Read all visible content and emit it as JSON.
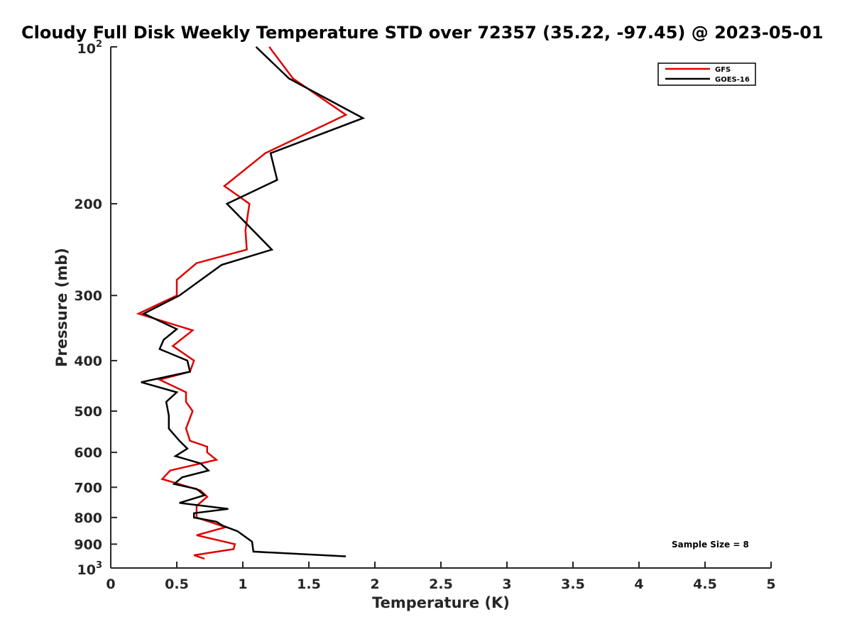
{
  "chart_data": {
    "type": "line",
    "title": "Cloudy Full Disk Weekly Temperature STD over 72357 (35.22, -97.45) @ 2023-05-01",
    "xlabel": "Temperature (K)",
    "ylabel": "Pressure (mb)",
    "xlim": [
      0,
      5
    ],
    "ylim": [
      100,
      1000
    ],
    "y_scale": "log",
    "y_reversed": true,
    "grid": false,
    "legend_position": "top-right",
    "x_ticks": [
      "0",
      "0.5",
      "1",
      "1.5",
      "2",
      "2.5",
      "3",
      "3.5",
      "4",
      "4.5",
      "5"
    ],
    "y_ticks": [
      {
        "value": 100,
        "base": "10",
        "exp": "2"
      },
      {
        "value": 200,
        "label": "200"
      },
      {
        "value": 300,
        "label": "300"
      },
      {
        "value": 400,
        "label": "400"
      },
      {
        "value": 500,
        "label": "500"
      },
      {
        "value": 600,
        "label": "600"
      },
      {
        "value": 700,
        "label": "700"
      },
      {
        "value": 800,
        "label": "800"
      },
      {
        "value": 900,
        "label": "900"
      },
      {
        "value": 1000,
        "base": "10",
        "exp": "3"
      }
    ],
    "annotation": "Sample Size = 8",
    "series": [
      {
        "name": "GFS",
        "color": "#e00000",
        "points": [
          [
            1.2,
            100
          ],
          [
            1.38,
            115
          ],
          [
            1.78,
            135
          ],
          [
            1.17,
            160
          ],
          [
            0.86,
            185
          ],
          [
            1.05,
            200
          ],
          [
            1.02,
            225
          ],
          [
            1.03,
            245
          ],
          [
            0.65,
            260
          ],
          [
            0.5,
            280
          ],
          [
            0.5,
            300
          ],
          [
            0.21,
            325
          ],
          [
            0.62,
            350
          ],
          [
            0.47,
            375
          ],
          [
            0.63,
            400
          ],
          [
            0.6,
            420
          ],
          [
            0.37,
            435
          ],
          [
            0.57,
            460
          ],
          [
            0.57,
            480
          ],
          [
            0.62,
            500
          ],
          [
            0.57,
            540
          ],
          [
            0.6,
            570
          ],
          [
            0.73,
            585
          ],
          [
            0.73,
            600
          ],
          [
            0.8,
            620
          ],
          [
            0.45,
            650
          ],
          [
            0.39,
            675
          ],
          [
            0.68,
            710
          ],
          [
            0.73,
            730
          ],
          [
            0.65,
            760
          ],
          [
            0.65,
            800
          ],
          [
            0.87,
            835
          ],
          [
            0.65,
            865
          ],
          [
            0.94,
            900
          ],
          [
            0.93,
            920
          ],
          [
            0.63,
            945
          ],
          [
            0.71,
            960
          ]
        ]
      },
      {
        "name": "GOES-16",
        "color": "#000000",
        "points": [
          [
            1.1,
            100
          ],
          [
            1.35,
            115
          ],
          [
            1.91,
            137
          ],
          [
            1.21,
            160
          ],
          [
            1.26,
            180
          ],
          [
            0.88,
            200
          ],
          [
            1.22,
            245
          ],
          [
            0.84,
            262
          ],
          [
            0.52,
            300
          ],
          [
            0.25,
            325
          ],
          [
            0.5,
            348
          ],
          [
            0.4,
            365
          ],
          [
            0.37,
            380
          ],
          [
            0.58,
            400
          ],
          [
            0.6,
            420
          ],
          [
            0.23,
            440
          ],
          [
            0.5,
            460
          ],
          [
            0.42,
            480
          ],
          [
            0.44,
            510
          ],
          [
            0.44,
            540
          ],
          [
            0.52,
            570
          ],
          [
            0.58,
            590
          ],
          [
            0.49,
            610
          ],
          [
            0.68,
            630
          ],
          [
            0.74,
            650
          ],
          [
            0.54,
            670
          ],
          [
            0.48,
            690
          ],
          [
            0.65,
            705
          ],
          [
            0.71,
            725
          ],
          [
            0.52,
            750
          ],
          [
            0.89,
            770
          ],
          [
            0.63,
            785
          ],
          [
            0.63,
            800
          ],
          [
            0.8,
            815
          ],
          [
            0.85,
            830
          ],
          [
            0.96,
            850
          ],
          [
            1.07,
            890
          ],
          [
            1.08,
            930
          ],
          [
            1.78,
            950
          ]
        ]
      }
    ]
  }
}
